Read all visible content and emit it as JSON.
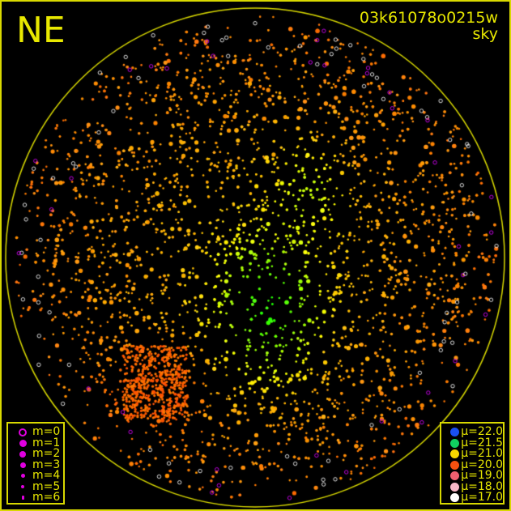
{
  "direction_label": "NE",
  "camera_id": "03k61078o0215w",
  "camera_mode": "sky",
  "colors": {
    "frame": "#d8d800",
    "text": "#e8e800",
    "background": "#000000"
  },
  "magnitude_legend": [
    {
      "label": "m=0",
      "style": "ring"
    },
    {
      "label": "m=1",
      "style": "filled"
    },
    {
      "label": "m=2",
      "style": "filled"
    },
    {
      "label": "m=3",
      "style": "filled"
    },
    {
      "label": "m=4",
      "style": "filled"
    },
    {
      "label": "m=5",
      "style": "filled"
    },
    {
      "label": "m=6",
      "style": "filled"
    }
  ],
  "magnitude_color": "#e000e0",
  "brightness_legend": [
    {
      "label": "μ=22.0",
      "color": "#1a50f0"
    },
    {
      "label": "μ=21.5",
      "color": "#10d060"
    },
    {
      "label": "μ=21.0",
      "color": "#f8d800"
    },
    {
      "label": "μ=20.0",
      "color": "#f85010"
    },
    {
      "label": "μ=19.0",
      "color": "#f06070"
    },
    {
      "label": "μ=18.0",
      "color": "#f8b8c8"
    },
    {
      "label": "μ=17.0",
      "color": "#ffffff"
    }
  ]
}
